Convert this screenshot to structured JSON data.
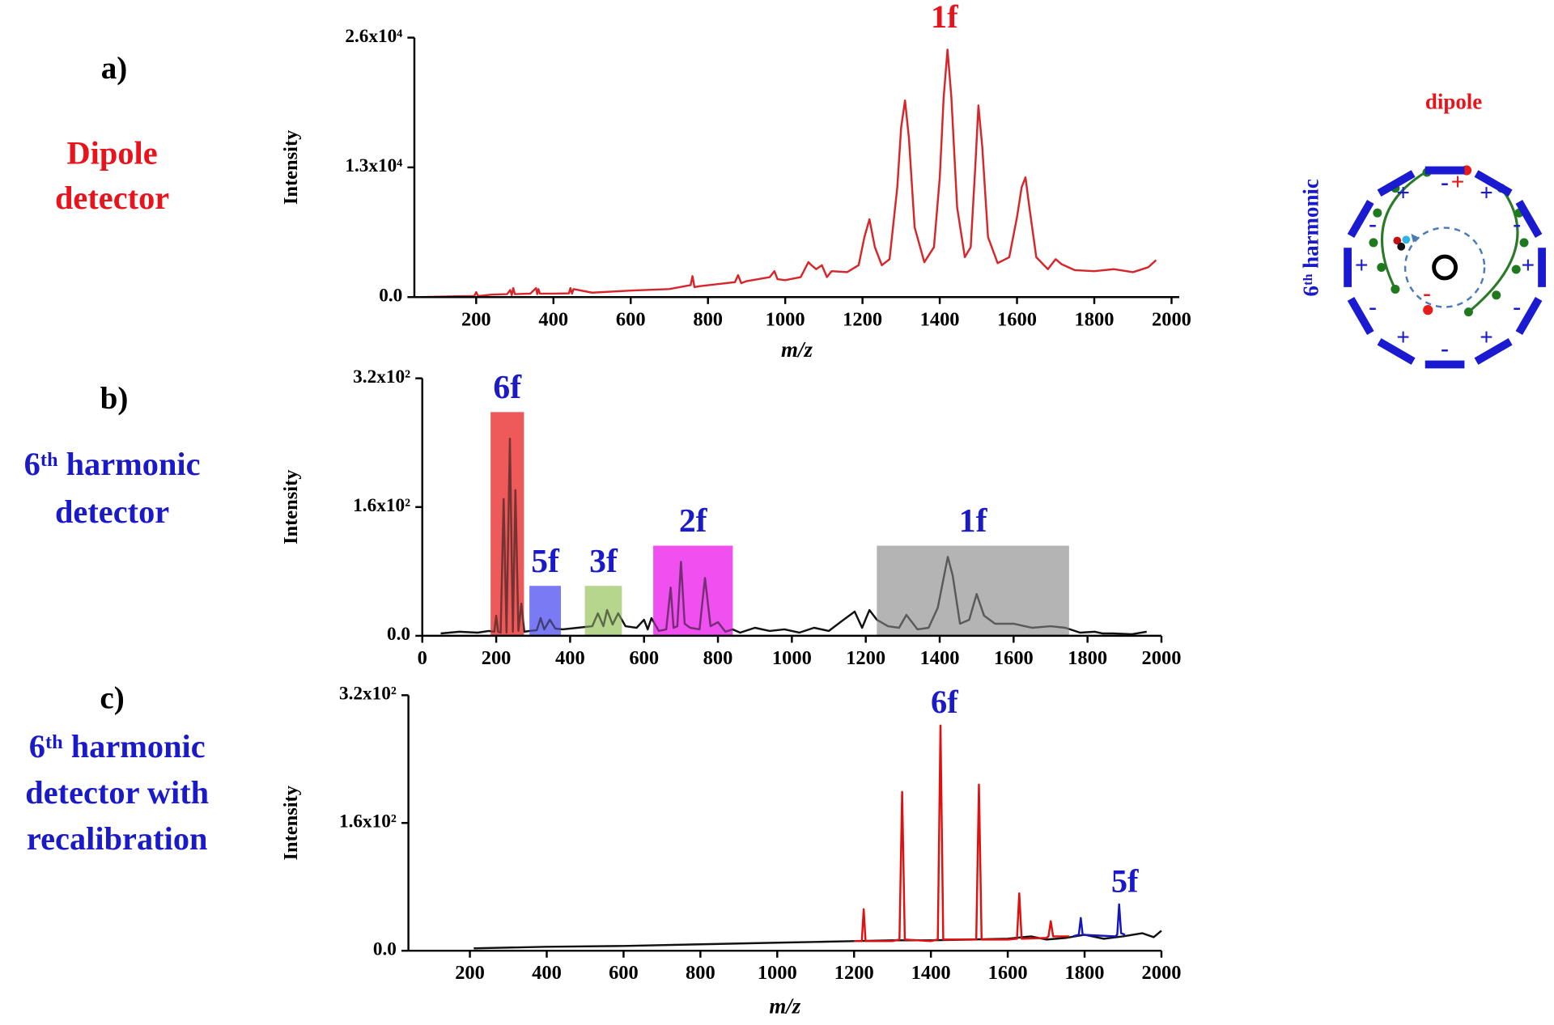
{
  "chart_data": [
    {
      "type": "line",
      "panel": "a)",
      "title_lines": [
        "Dipole",
        "detector"
      ],
      "title_color": "#e8141b",
      "ylabel": "Intensity",
      "xlabel": "m/z",
      "xlim": [
        40,
        2020
      ],
      "ylim": [
        0,
        26000
      ],
      "xticks": [
        200,
        400,
        600,
        800,
        1000,
        1200,
        1400,
        1600,
        1800,
        2000
      ],
      "yticks": [
        {
          "value": 0,
          "label": "0.0"
        },
        {
          "value": 13000,
          "label": "1.3x10⁴"
        },
        {
          "value": 26000,
          "label": "2.6x10⁴"
        }
      ],
      "series": [
        {
          "color": "#d7262b",
          "x": [
            60,
            150,
            195,
            200,
            205,
            240,
            280,
            288,
            292,
            296,
            300,
            340,
            355,
            358,
            361,
            365,
            400,
            440,
            444,
            448,
            452,
            500,
            600,
            700,
            755,
            760,
            765,
            780,
            870,
            878,
            886,
            900,
            960,
            972,
            980,
            1000,
            1040,
            1060,
            1068,
            1080,
            1095,
            1108,
            1120,
            1160,
            1190,
            1205,
            1218,
            1232,
            1250,
            1270,
            1290,
            1300,
            1310,
            1320,
            1335,
            1360,
            1385,
            1400,
            1410,
            1420,
            1430,
            1445,
            1465,
            1480,
            1492,
            1500,
            1510,
            1525,
            1550,
            1580,
            1600,
            1612,
            1622,
            1632,
            1650,
            1680,
            1700,
            1715,
            1750,
            1800,
            1850,
            1900,
            1940,
            1960
          ],
          "values": [
            0,
            80,
            100,
            500,
            100,
            250,
            300,
            700,
            200,
            900,
            300,
            350,
            900,
            300,
            800,
            350,
            350,
            380,
            900,
            350,
            800,
            450,
            650,
            800,
            1200,
            2100,
            1000,
            1100,
            1500,
            2200,
            1400,
            1600,
            2000,
            2600,
            1800,
            1700,
            2000,
            3500,
            3200,
            2800,
            3200,
            2000,
            2600,
            2500,
            3200,
            6000,
            7800,
            5000,
            3200,
            3800,
            11000,
            17000,
            19700,
            16000,
            7000,
            3500,
            5000,
            12000,
            20000,
            24800,
            20000,
            9000,
            4000,
            5000,
            13000,
            19200,
            15000,
            6000,
            3400,
            4000,
            8000,
            11000,
            12000,
            9000,
            4000,
            2800,
            3800,
            3300,
            2700,
            2600,
            2800,
            2500,
            3000,
            3700
          ]
        }
      ],
      "annotations": [
        {
          "text": "1f",
          "color": "#e8141b"
        }
      ]
    },
    {
      "type": "line",
      "panel": "b)",
      "title_lines": [
        "6ᵗʰ harmonic",
        "detector"
      ],
      "title_color": "#1a1ac8",
      "ylabel": "Intensity",
      "xlim": [
        0,
        2000
      ],
      "ylim": [
        0,
        320
      ],
      "xticks": [
        0,
        200,
        400,
        600,
        800,
        1000,
        1200,
        1400,
        1600,
        1800,
        2000
      ],
      "yticks": [
        {
          "value": 0,
          "label": "0.0"
        },
        {
          "value": 160,
          "label": "1.6x10²"
        },
        {
          "value": 320,
          "label": "3.2x10²"
        }
      ],
      "series": [
        {
          "color": "#111111",
          "x": [
            50,
            100,
            150,
            180,
            195,
            200,
            205,
            212,
            220,
            228,
            237,
            245,
            252,
            260,
            268,
            276,
            290,
            310,
            320,
            330,
            345,
            360,
            380,
            420,
            460,
            475,
            490,
            500,
            515,
            530,
            550,
            580,
            600,
            610,
            620,
            640,
            660,
            672,
            680,
            690,
            700,
            710,
            725,
            750,
            765,
            780,
            800,
            820,
            840,
            860,
            900,
            940,
            980,
            1020,
            1060,
            1100,
            1140,
            1170,
            1190,
            1210,
            1230,
            1260,
            1290,
            1310,
            1340,
            1370,
            1395,
            1410,
            1422,
            1435,
            1455,
            1480,
            1500,
            1520,
            1550,
            1600,
            1650,
            1700,
            1740,
            1780,
            1820,
            1840,
            1870,
            1920,
            1960
          ],
          "values": [
            3,
            5,
            4,
            6,
            5,
            25,
            5,
            4,
            170,
            4,
            245,
            5,
            181,
            6,
            40,
            5,
            6,
            7,
            22,
            8,
            20,
            9,
            8,
            10,
            12,
            28,
            12,
            32,
            14,
            28,
            12,
            10,
            20,
            8,
            22,
            6,
            8,
            60,
            10,
            12,
            92,
            15,
            10,
            8,
            72,
            12,
            17,
            5,
            8,
            4,
            10,
            6,
            8,
            4,
            10,
            6,
            20,
            30,
            10,
            32,
            20,
            12,
            10,
            26,
            8,
            10,
            35,
            70,
            98,
            75,
            15,
            20,
            52,
            25,
            15,
            15,
            10,
            12,
            10,
            4,
            5,
            3,
            3,
            2,
            5
          ]
        }
      ],
      "highlights": [
        {
          "label": "6f",
          "xrange": [
            185,
            275
          ],
          "top": 278,
          "color": "#ee5a5a"
        },
        {
          "label": "5f",
          "xrange": [
            290,
            375
          ],
          "top": 62,
          "color": "#7a7af5"
        },
        {
          "label": "3f",
          "xrange": [
            440,
            540
          ],
          "top": 62,
          "color": "#b5d68c"
        },
        {
          "label": "2f",
          "xrange": [
            625,
            840
          ],
          "top": 112,
          "color": "#f050f0"
        },
        {
          "label": "1f",
          "xrange": [
            1230,
            1750
          ],
          "top": 112,
          "color": "#b4b4b4"
        }
      ],
      "label_color": "#1a1ac8"
    },
    {
      "type": "line",
      "panel": "c)",
      "title_lines": [
        "6ᵗʰ harmonic",
        "detector with",
        "recalibration"
      ],
      "title_color": "#1a1ac8",
      "ylabel": "Intensity",
      "xlabel": "m/z",
      "xlim": [
        40,
        2000
      ],
      "ylim": [
        0,
        320
      ],
      "xticks": [
        200,
        400,
        600,
        800,
        1000,
        1200,
        1400,
        1600,
        1800,
        2000
      ],
      "yticks": [
        {
          "value": 0,
          "label": "0.0"
        },
        {
          "value": 160,
          "label": "1.6x10²"
        },
        {
          "value": 320,
          "label": "3.2x10²"
        }
      ],
      "series": [
        {
          "color": "#111111",
          "x": [
            210,
            400,
            600,
            800,
            1000,
            1100,
            1200,
            1300,
            1400,
            1500,
            1600,
            1660,
            1700,
            1750,
            1800,
            1850,
            1900,
            1950,
            1980,
            2000
          ],
          "values": [
            3,
            5,
            6,
            8,
            10,
            11,
            12,
            13,
            13,
            14,
            15,
            18,
            14,
            16,
            20,
            15,
            18,
            22,
            17,
            25
          ]
        },
        {
          "color": "#e01010",
          "x": [
            1200,
            1220,
            1225,
            1230,
            1300,
            1318,
            1325,
            1332,
            1400,
            1418,
            1425,
            1432,
            1500,
            1518,
            1525,
            1532,
            1600,
            1624,
            1630,
            1636,
            1700,
            1706,
            1712,
            1718,
            1760
          ],
          "values": [
            12,
            12,
            52,
            12,
            12,
            14,
            199,
            14,
            12,
            14,
            282,
            14,
            14,
            14,
            208,
            14,
            14,
            15,
            72,
            15,
            16,
            18,
            37,
            18,
            18
          ]
        },
        {
          "color": "#1515c0",
          "x": [
            1770,
            1785,
            1790,
            1795,
            1880,
            1885,
            1890,
            1895,
            1905
          ],
          "values": [
            18,
            20,
            41,
            20,
            18,
            20,
            58,
            22,
            20
          ]
        }
      ],
      "annotations": [
        {
          "text": "6f",
          "color": "#1a1ac8"
        },
        {
          "text": "5f",
          "color": "#1a1ac8"
        }
      ]
    }
  ],
  "diagram": {
    "top_label": "dipole",
    "side_label": "6ᵗʰ harmonic",
    "electrode_signs": [
      "-",
      "+",
      "-",
      "+",
      "-",
      "+",
      "-",
      "+",
      "-",
      "+",
      "-",
      "+"
    ],
    "ion_signs": [
      "+",
      "-"
    ]
  }
}
